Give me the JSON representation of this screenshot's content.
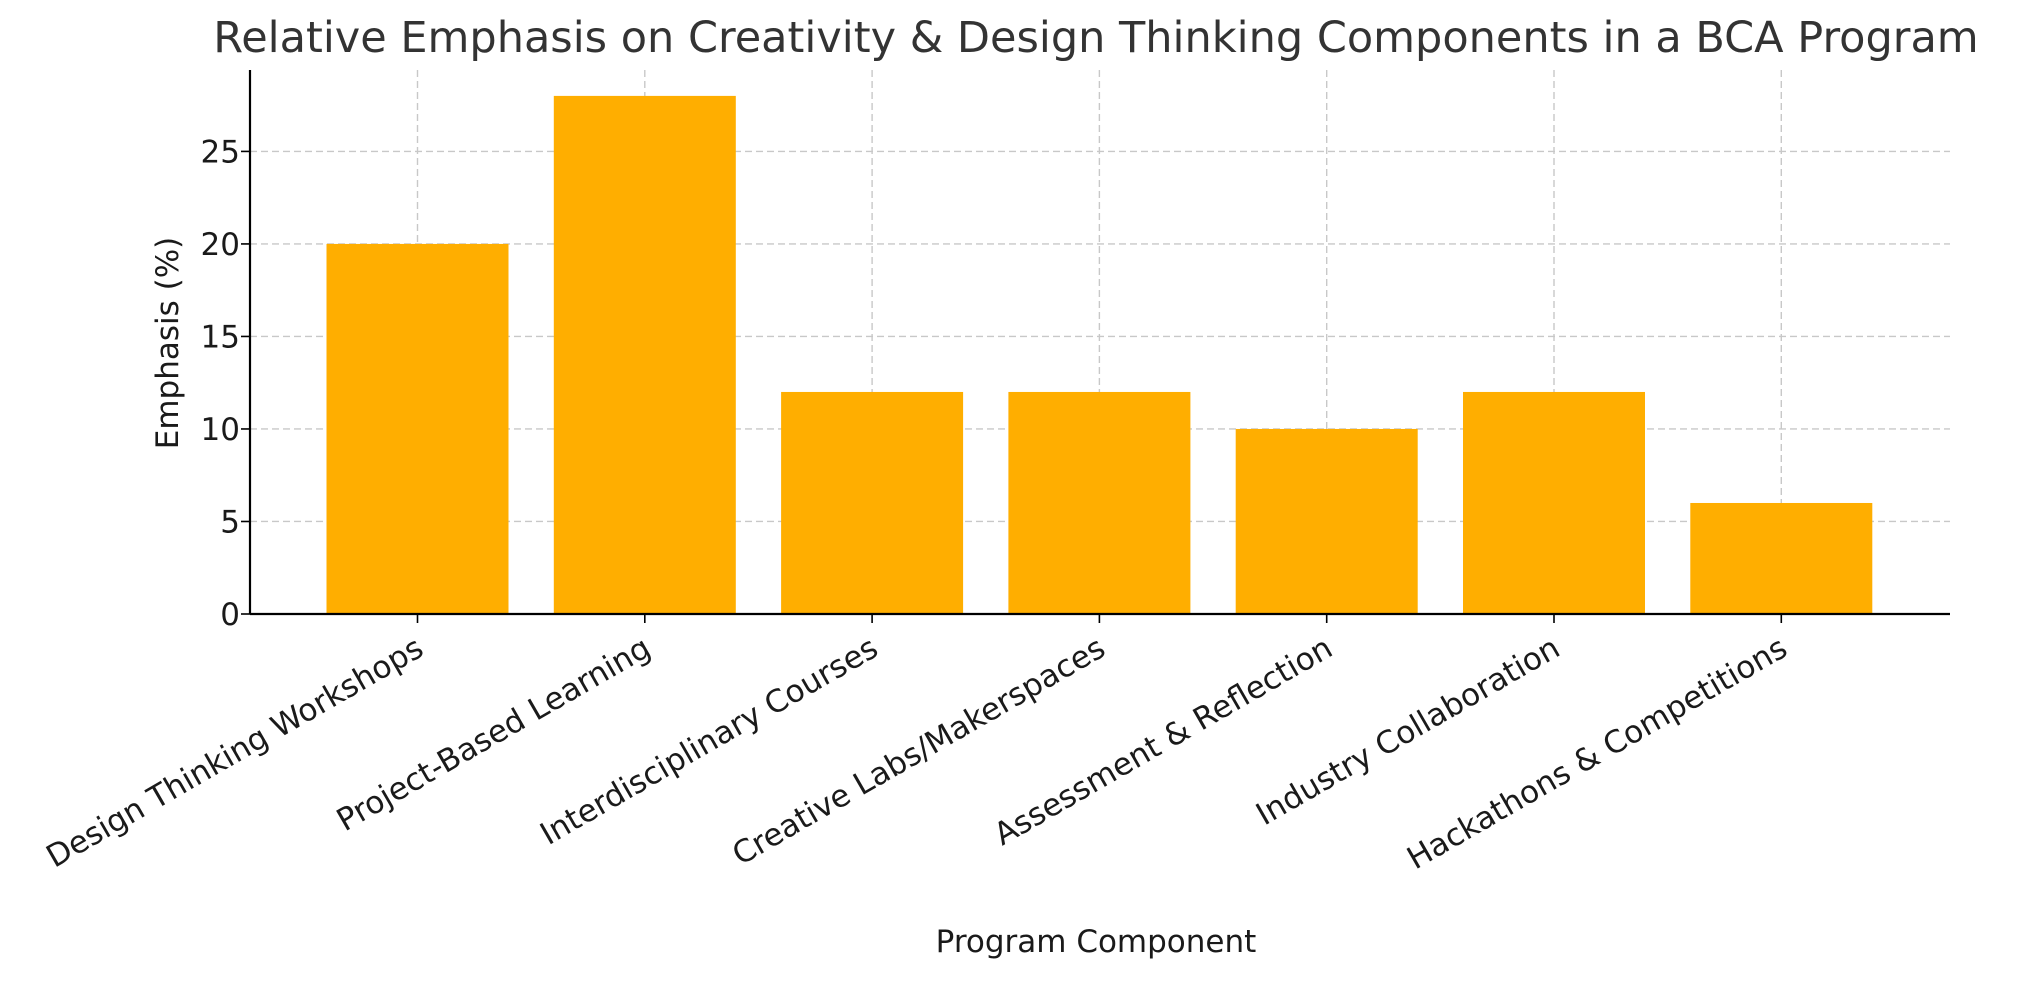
{
  "chart_data": {
    "type": "bar",
    "title": "Relative Emphasis on Creativity & Design Thinking Components in a BCA Program",
    "xlabel": "Program Component",
    "ylabel": "Emphasis (%)",
    "categories": [
      "Design Thinking Workshops",
      "Project-Based Learning",
      "Interdisciplinary Courses",
      "Creative Labs/Makerspaces",
      "Assessment & Reflection",
      "Industry Collaboration",
      "Hackathons & Competitions"
    ],
    "values": [
      20,
      28,
      12,
      12,
      10,
      12,
      6
    ],
    "ylim": [
      0,
      29.4
    ],
    "yticks": [
      0,
      5,
      10,
      15,
      20,
      25
    ],
    "grid": true,
    "bar_color": "#FFAE00"
  }
}
